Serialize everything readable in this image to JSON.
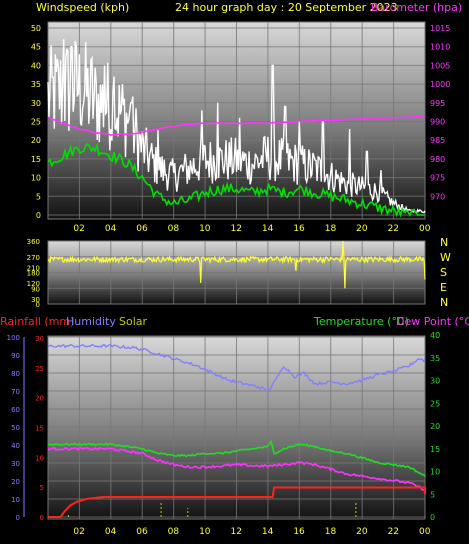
{
  "colors": {
    "background": "#000000",
    "grid": "#777777",
    "wind_speed": "#ffffff",
    "wind_avg": "#00e000",
    "barometer": "#ff33ff",
    "direction": "#ffff33",
    "rain": "#ff2222",
    "humidity": "#8080ff",
    "solar": "#c8c800",
    "temperature": "#22dd22",
    "dewpoint": "#ff33ff"
  },
  "chart_data": [
    {
      "type": "line",
      "title": "24 hour graph day : 20 September 2023",
      "time_ticks": [
        "02",
        "04",
        "06",
        "08",
        "10",
        "12",
        "14",
        "16",
        "18",
        "20",
        "22",
        "00"
      ],
      "left_axis": {
        "label": "Windspeed (kph)",
        "min": 0,
        "max": 50,
        "ticks": [
          "0",
          "5",
          "10",
          "15",
          "20",
          "25",
          "30",
          "35",
          "40",
          "45",
          "50"
        ]
      },
      "right_axis": {
        "label": "Barometer (hpa)",
        "min": 965,
        "max": 1015,
        "ticks": [
          "970",
          "975",
          "980",
          "985",
          "990",
          "995",
          "1000",
          "1005",
          "1010",
          "1015"
        ]
      },
      "wind_gust_anchors": [
        [
          0.0,
          30
        ],
        [
          1.0,
          32
        ],
        [
          2.0,
          33
        ],
        [
          3.0,
          29
        ],
        [
          4.0,
          28
        ],
        [
          5.0,
          25
        ],
        [
          6.0,
          17
        ],
        [
          7.0,
          12
        ],
        [
          8.0,
          10
        ],
        [
          9.0,
          12
        ],
        [
          10.0,
          14
        ],
        [
          11.0,
          14
        ],
        [
          12.0,
          14
        ],
        [
          13.0,
          13
        ],
        [
          14.0,
          15
        ],
        [
          15.0,
          14
        ],
        [
          16.0,
          13
        ],
        [
          17.0,
          12
        ],
        [
          18.0,
          10
        ],
        [
          19.0,
          8
        ],
        [
          20.0,
          7
        ],
        [
          21.0,
          6
        ],
        [
          22.0,
          3
        ],
        [
          23.0,
          1
        ],
        [
          24.0,
          1
        ]
      ],
      "wind_peaks": [
        [
          1.0,
          47
        ],
        [
          1.5,
          45
        ],
        [
          2.0,
          43
        ],
        [
          2.8,
          42
        ],
        [
          3.6,
          40
        ],
        [
          4.2,
          37
        ],
        [
          5.3,
          30
        ],
        [
          7.0,
          23
        ],
        [
          9.8,
          28
        ],
        [
          10.8,
          30
        ],
        [
          12.2,
          26
        ],
        [
          14.3,
          40
        ],
        [
          15.1,
          29
        ],
        [
          16.0,
          25
        ],
        [
          17.5,
          25
        ],
        [
          19.2,
          23
        ],
        [
          20.3,
          17
        ],
        [
          21.2,
          12
        ]
      ],
      "wind_avg_anchors": [
        [
          0.0,
          14
        ],
        [
          1.0,
          16
        ],
        [
          2.0,
          18
        ],
        [
          3.0,
          18
        ],
        [
          4.0,
          16
        ],
        [
          5.0,
          14
        ],
        [
          6.0,
          10
        ],
        [
          7.0,
          5
        ],
        [
          8.0,
          3
        ],
        [
          9.0,
          4
        ],
        [
          10.0,
          6
        ],
        [
          11.0,
          7
        ],
        [
          12.0,
          7
        ],
        [
          13.0,
          6
        ],
        [
          14.0,
          7
        ],
        [
          15.0,
          6
        ],
        [
          16.0,
          7
        ],
        [
          17.0,
          6
        ],
        [
          18.0,
          5
        ],
        [
          19.0,
          4
        ],
        [
          20.0,
          3
        ],
        [
          21.0,
          2
        ],
        [
          22.0,
          1
        ],
        [
          23.0,
          0
        ],
        [
          24.0,
          0
        ]
      ],
      "barometer_anchors": [
        [
          0.0,
          991
        ],
        [
          1.0,
          989.5
        ],
        [
          2.0,
          988
        ],
        [
          3.0,
          987
        ],
        [
          4.0,
          986.5
        ],
        [
          5.0,
          986.5
        ],
        [
          6.0,
          987
        ],
        [
          7.0,
          988
        ],
        [
          8.0,
          988.7
        ],
        [
          9.0,
          989.2
        ],
        [
          10.0,
          989.5
        ],
        [
          12.0,
          989.5
        ],
        [
          14.0,
          989.6
        ],
        [
          16.0,
          990.0
        ],
        [
          18.0,
          990.3
        ],
        [
          20.0,
          990.7
        ],
        [
          22.0,
          991.0
        ],
        [
          24.0,
          991.3
        ]
      ]
    },
    {
      "type": "line",
      "labels_right": [
        "N",
        "W",
        "S",
        "E",
        "N"
      ],
      "axis": {
        "min": 0,
        "max": 360,
        "ticks": [
          "0",
          "90",
          "180",
          "270",
          "360",
          "30",
          "120",
          "210"
        ]
      },
      "direction_mean": 255,
      "direction_spikes": [
        [
          9.7,
          120
        ],
        [
          15.8,
          190
        ],
        [
          18.8,
          360
        ],
        [
          18.9,
          90
        ],
        [
          23.6,
          250
        ],
        [
          24.0,
          140
        ]
      ]
    },
    {
      "type": "line",
      "legend": [
        "Rainfall (mm)",
        "Humidity",
        "Solar",
        "Temperature (°C)",
        "Dew Point (°C)"
      ],
      "humidity_axis": {
        "min": 0,
        "max": 100,
        "ticks": [
          "0",
          "10",
          "20",
          "30",
          "40",
          "50",
          "60",
          "70",
          "80",
          "90",
          "100"
        ]
      },
      "rain_axis": {
        "min": 0,
        "max": 30,
        "ticks": [
          "0",
          "5",
          "10",
          "15",
          "20",
          "25",
          "30"
        ]
      },
      "temp_axis": {
        "min": 0,
        "max": 40,
        "ticks": [
          "0",
          "5",
          "10",
          "15",
          "20",
          "25",
          "30",
          "35",
          "40"
        ]
      },
      "humidity": [
        [
          0.0,
          95
        ],
        [
          2.0,
          95
        ],
        [
          4.0,
          95
        ],
        [
          5.5,
          94
        ],
        [
          6.5,
          92
        ],
        [
          8.0,
          88
        ],
        [
          9.5,
          84
        ],
        [
          10.5,
          80
        ],
        [
          11.5,
          76
        ],
        [
          12.5,
          74
        ],
        [
          13.5,
          72
        ],
        [
          14.0,
          70
        ],
        [
          14.5,
          76
        ],
        [
          15.0,
          84
        ],
        [
          15.7,
          78
        ],
        [
          16.3,
          80
        ],
        [
          17.0,
          74
        ],
        [
          18.0,
          75
        ],
        [
          19.0,
          74
        ],
        [
          20.0,
          76
        ],
        [
          21.0,
          79
        ],
        [
          22.0,
          81
        ],
        [
          23.0,
          84
        ],
        [
          23.6,
          88
        ],
        [
          24.0,
          87
        ]
      ],
      "temperature": [
        [
          0.0,
          16
        ],
        [
          2.0,
          16
        ],
        [
          4.0,
          16
        ],
        [
          5.0,
          15.5
        ],
        [
          6.0,
          15
        ],
        [
          7.0,
          14
        ],
        [
          8.0,
          13.5
        ],
        [
          9.0,
          13.5
        ],
        [
          10.0,
          14
        ],
        [
          11.0,
          14
        ],
        [
          12.0,
          14.5
        ],
        [
          13.0,
          15
        ],
        [
          14.0,
          15.5
        ],
        [
          14.2,
          16.5
        ],
        [
          14.4,
          14
        ],
        [
          15.0,
          15
        ],
        [
          16.0,
          16
        ],
        [
          17.0,
          15.5
        ],
        [
          18.0,
          14.5
        ],
        [
          19.0,
          14
        ],
        [
          20.0,
          13
        ],
        [
          21.0,
          12
        ],
        [
          22.0,
          11.5
        ],
        [
          23.0,
          11
        ],
        [
          24.0,
          9
        ]
      ],
      "dewpoint": [
        [
          0.0,
          15
        ],
        [
          2.0,
          15
        ],
        [
          4.0,
          15
        ],
        [
          5.0,
          14.5
        ],
        [
          6.0,
          14
        ],
        [
          7.0,
          12.5
        ],
        [
          8.0,
          11.5
        ],
        [
          9.0,
          11
        ],
        [
          10.0,
          11
        ],
        [
          11.0,
          11.2
        ],
        [
          12.0,
          11.5
        ],
        [
          13.0,
          11.3
        ],
        [
          14.0,
          11.2
        ],
        [
          15.0,
          11.5
        ],
        [
          16.0,
          12
        ],
        [
          17.0,
          11.5
        ],
        [
          18.0,
          10.5
        ],
        [
          19.0,
          9.5
        ],
        [
          20.0,
          9
        ],
        [
          21.0,
          8.5
        ],
        [
          22.0,
          8
        ],
        [
          23.0,
          7.5
        ],
        [
          24.0,
          6
        ]
      ],
      "rainfall": [
        [
          0.0,
          0
        ],
        [
          0.7,
          0
        ],
        [
          1.6,
          3.5
        ],
        [
          3.0,
          4.5
        ],
        [
          4.0,
          4.5
        ],
        [
          24.0,
          4.5
        ]
      ],
      "rainfall_steps": [
        [
          0.0,
          0
        ],
        [
          0.8,
          0
        ],
        [
          1.0,
          1
        ],
        [
          1.4,
          2.5
        ],
        [
          1.8,
          3.3
        ],
        [
          2.5,
          4
        ],
        [
          3.5,
          4.4
        ],
        [
          4.5,
          4.4
        ],
        [
          14.3,
          4.4
        ],
        [
          14.4,
          6.5
        ],
        [
          24.0,
          6.5
        ],
        [
          24.0,
          5
        ]
      ],
      "solar_marks": [
        [
          1.3,
          0.3
        ],
        [
          7.2,
          2
        ],
        [
          8.9,
          1.3
        ],
        [
          19.6,
          2
        ]
      ]
    }
  ]
}
